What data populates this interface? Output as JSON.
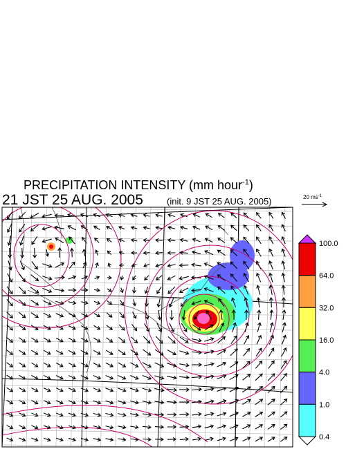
{
  "header": {
    "title": "PRECIPITATION INTENSITY (mm hour",
    "title_exponent": "-1",
    "title_close": ")",
    "valid_time": "21 JST 25 AUG. 2005",
    "init_time": "(init. 9 JST 25 AUG. 2005)"
  },
  "reference_vector": {
    "label": "20 ms",
    "label_exponent": "-1"
  },
  "colorbar": {
    "labels": [
      "100.0",
      "64.0",
      "32.0",
      "16.0",
      "4.0",
      "1.0",
      "0.4"
    ],
    "colors": [
      "#ee0000",
      "#ffa040",
      "#ffff55",
      "#55ee55",
      "#6666ff",
      "#55ffff"
    ],
    "over_color": "#cc33ff",
    "under_color": "#ffffff"
  }
}
